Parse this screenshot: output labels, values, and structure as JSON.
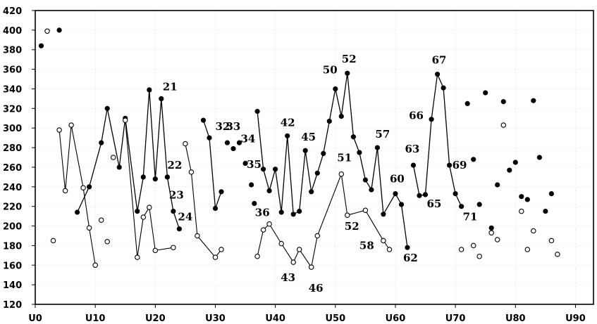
{
  "chart_data": {
    "type": "scatter",
    "xlim": [
      0,
      93
    ],
    "ylim": [
      120,
      420
    ],
    "yticks": [
      120,
      140,
      160,
      180,
      200,
      220,
      240,
      260,
      280,
      300,
      320,
      340,
      360,
      380,
      400,
      420
    ],
    "xticks": [
      {
        "v": 0,
        "label": "U0"
      },
      {
        "v": 10,
        "label": "U10"
      },
      {
        "v": 20,
        "label": "U20"
      },
      {
        "v": 30,
        "label": "U30"
      },
      {
        "v": 40,
        "label": "U40"
      },
      {
        "v": 50,
        "label": "U50"
      },
      {
        "v": 60,
        "label": "U60"
      },
      {
        "v": 70,
        "label": "U70"
      },
      {
        "v": 80,
        "label": "U80"
      },
      {
        "v": 90,
        "label": "U90"
      }
    ],
    "series": [
      {
        "marker": "filled",
        "segments": [
          [
            [
              7,
              214
            ],
            [
              9,
              240
            ],
            [
              11,
              285
            ],
            [
              12,
              320
            ],
            [
              14,
              260
            ],
            [
              15,
              310
            ],
            [
              17,
              215
            ],
            [
              18,
              250
            ],
            [
              19,
              339
            ],
            [
              20,
              248
            ],
            [
              21,
              330
            ],
            [
              22,
              250
            ],
            [
              23,
              215
            ],
            [
              24,
              197
            ]
          ],
          [
            [
              28,
              308
            ],
            [
              29,
              290
            ],
            [
              30,
              218
            ],
            [
              31,
              235
            ]
          ],
          [
            [
              37,
              317
            ],
            [
              38,
              258
            ],
            [
              39,
              236
            ],
            [
              40,
              258
            ],
            [
              41,
              214
            ],
            [
              42,
              292
            ],
            [
              43,
              212
            ],
            [
              44,
              215
            ],
            [
              45,
              277
            ],
            [
              46,
              235
            ],
            [
              47,
              254
            ],
            [
              48,
              274
            ],
            [
              49,
              307
            ],
            [
              50,
              340
            ],
            [
              51,
              312
            ],
            [
              52,
              356
            ],
            [
              53,
              291
            ],
            [
              54,
              275
            ],
            [
              55,
              247
            ],
            [
              56,
              237
            ],
            [
              57,
              280
            ],
            [
              58,
              212
            ],
            [
              60,
              233
            ],
            [
              61,
              222
            ],
            [
              62,
              178
            ]
          ],
          [
            [
              63,
              262
            ],
            [
              64,
              231
            ],
            [
              65,
              232
            ],
            [
              66,
              309
            ],
            [
              67,
              355
            ],
            [
              68,
              341
            ],
            [
              69,
              262
            ],
            [
              70,
              233
            ],
            [
              71,
              220
            ]
          ]
        ],
        "points": [
          [
            1,
            384
          ],
          [
            4,
            400
          ],
          [
            32,
            285
          ],
          [
            33,
            279
          ],
          [
            34,
            285
          ],
          [
            35,
            264
          ],
          [
            36,
            242
          ],
          [
            36.5,
            223
          ],
          [
            72,
            325
          ],
          [
            73,
            268
          ],
          [
            74,
            222
          ],
          [
            75,
            336
          ],
          [
            76,
            198
          ],
          [
            77,
            242
          ],
          [
            78,
            327
          ],
          [
            79,
            257
          ],
          [
            80,
            265
          ],
          [
            81,
            230
          ],
          [
            82,
            227
          ],
          [
            83,
            328
          ],
          [
            84,
            270
          ],
          [
            85,
            215
          ],
          [
            86,
            233
          ]
        ]
      },
      {
        "marker": "open",
        "segments": [
          [
            [
              4,
              298
            ],
            [
              5,
              236
            ],
            [
              6,
              303
            ],
            [
              8,
              239
            ],
            [
              9,
              198
            ],
            [
              10,
              160
            ]
          ],
          [
            [
              15,
              308
            ],
            [
              17,
              168
            ],
            [
              18,
              209
            ],
            [
              19,
              219
            ],
            [
              20,
              175
            ],
            [
              23,
              178
            ]
          ],
          [
            [
              25,
              284
            ],
            [
              26,
              255
            ],
            [
              27,
              190
            ],
            [
              30,
              168
            ],
            [
              31,
              176
            ]
          ],
          [
            [
              37,
              169
            ],
            [
              38,
              196
            ],
            [
              39,
              202
            ],
            [
              41,
              182
            ],
            [
              43,
              163
            ],
            [
              44,
              176
            ],
            [
              46,
              158
            ],
            [
              47,
              190
            ],
            [
              51,
              253
            ],
            [
              52,
              211
            ],
            [
              55,
              216
            ],
            [
              58,
              185
            ],
            [
              59,
              176
            ]
          ]
        ],
        "points": [
          [
            2,
            399
          ],
          [
            3,
            185
          ],
          [
            11,
            206
          ],
          [
            12,
            184
          ],
          [
            13,
            270
          ],
          [
            71,
            176
          ],
          [
            73,
            180
          ],
          [
            74,
            169
          ],
          [
            76,
            193
          ],
          [
            77,
            186
          ],
          [
            78,
            303
          ],
          [
            81,
            215
          ],
          [
            82,
            176
          ],
          [
            83,
            195
          ],
          [
            86,
            185
          ],
          [
            87,
            171
          ]
        ]
      }
    ],
    "labels": [
      {
        "text": "21",
        "x": 21,
        "y": 330
      },
      {
        "text": "22",
        "x": 22,
        "y": 250
      },
      {
        "text": "23",
        "x": 23,
        "y": 215
      },
      {
        "text": "24",
        "x": 24,
        "y": 197
      },
      {
        "text": "32",
        "x": 30,
        "y": 285
      },
      {
        "text": "33",
        "x": 32,
        "y": 285
      },
      {
        "text": "34",
        "x": 34,
        "y": 264
      },
      {
        "text": "35",
        "x": 35,
        "y": 242
      },
      {
        "text": "36",
        "x": 36.5,
        "y": 223
      },
      {
        "text": "42",
        "x": 42,
        "y": 292
      },
      {
        "text": "43",
        "x": 43,
        "y": 163
      },
      {
        "text": "45",
        "x": 45,
        "y": 277
      },
      {
        "text": "46",
        "x": 46,
        "y": 158
      },
      {
        "text": "50",
        "x": 50,
        "y": 340
      },
      {
        "text": "51",
        "x": 51,
        "y": 253
      },
      {
        "text": "52",
        "x": 52,
        "y": 356
      },
      {
        "text": "52",
        "x": 52,
        "y": 211
      },
      {
        "text": "57",
        "x": 57,
        "y": 280
      },
      {
        "text": "58",
        "x": 58,
        "y": 185
      },
      {
        "text": "60",
        "x": 60,
        "y": 233
      },
      {
        "text": "62",
        "x": 62,
        "y": 178
      },
      {
        "text": "63",
        "x": 63,
        "y": 262
      },
      {
        "text": "65",
        "x": 65,
        "y": 232
      },
      {
        "text": "66",
        "x": 66,
        "y": 309
      },
      {
        "text": "67",
        "x": 67,
        "y": 355
      },
      {
        "text": "69",
        "x": 69,
        "y": 262
      },
      {
        "text": "71",
        "x": 71,
        "y": 220
      }
    ],
    "grid": true,
    "legend": "none",
    "title": "",
    "xlabel": "",
    "ylabel": ""
  }
}
